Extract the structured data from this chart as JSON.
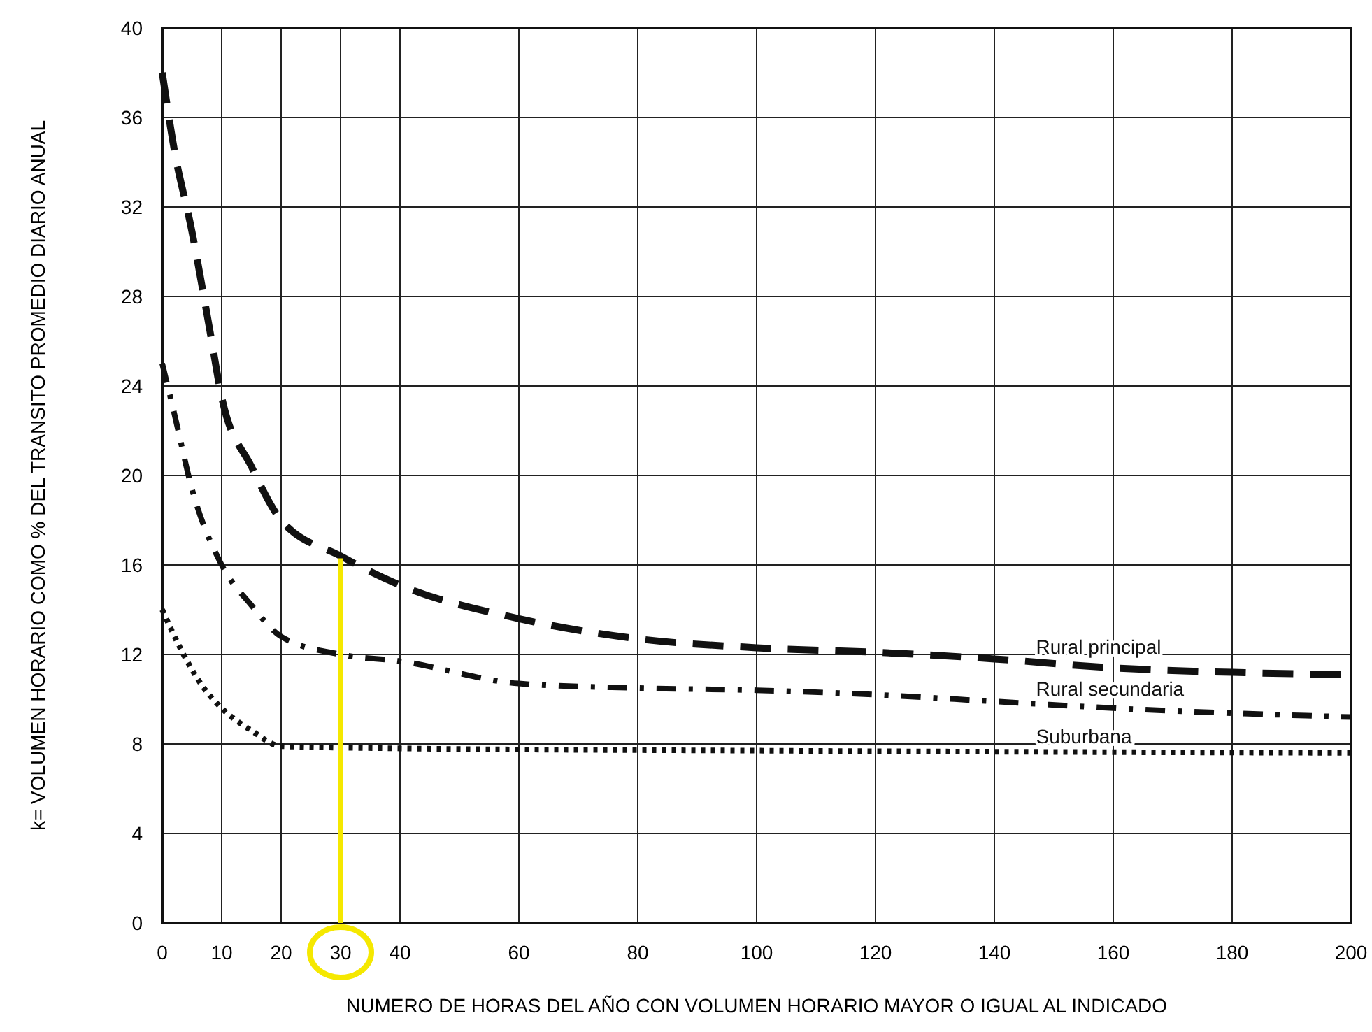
{
  "chart_data": {
    "type": "line",
    "xlabel": "NUMERO DE HORAS DEL AÑO CON VOLUMEN HORARIO MAYOR O IGUAL AL INDICADO",
    "ylabel": "k= VOLUMEN HORARIO COMO % DEL TRANSITO PROMEDIO DIARIO ANUAL",
    "xlim": [
      0,
      200
    ],
    "xticks": [
      0,
      10,
      20,
      30,
      40,
      60,
      80,
      100,
      120,
      140,
      160,
      180,
      {
        "value": 200,
        "label": "200"
      }
    ],
    "ylim": [
      0,
      40
    ],
    "yticks": [
      0,
      4,
      8,
      12,
      16,
      20,
      24,
      28,
      32,
      36,
      40
    ],
    "grid": true,
    "marker": "none",
    "series": [
      {
        "name": "Rural principal",
        "color": "#111111",
        "line_style": "dashed",
        "x": [
          0,
          2,
          5,
          8,
          10,
          15,
          20,
          30,
          40,
          60,
          80,
          100,
          120,
          140,
          160,
          180,
          200
        ],
        "values": [
          38,
          34.6,
          30.9,
          26.5,
          23.5,
          20.4,
          18,
          16.4,
          15.1,
          13.6,
          12.7,
          12.3,
          12.1,
          11.8,
          11.4,
          11.2,
          11.1
        ]
      },
      {
        "name": "Rural secundaria",
        "color": "#111111",
        "line_style": "dashdot",
        "x": [
          0,
          2,
          5,
          10,
          15,
          20,
          30,
          40,
          60,
          80,
          100,
          120,
          140,
          160,
          200
        ],
        "values": [
          25,
          22.8,
          19.4,
          16,
          14.2,
          12.8,
          12,
          11.7,
          10.7,
          10.5,
          10.4,
          10.2,
          9.9,
          9.6,
          9.2
        ]
      },
      {
        "name": "Suburbana",
        "color": "#111111",
        "line_style": "dotted",
        "x": [
          0,
          3,
          7,
          10,
          15,
          20,
          40,
          100,
          200
        ],
        "values": [
          14,
          12.3,
          10.5,
          9.6,
          8.6,
          7.9,
          7.8,
          7.7,
          7.6
        ]
      },
      {
        "color": "#f5e800",
        "line_style": "solid",
        "x": [
          30,
          30
        ],
        "values": [
          0,
          16.3
        ]
      }
    ]
  }
}
